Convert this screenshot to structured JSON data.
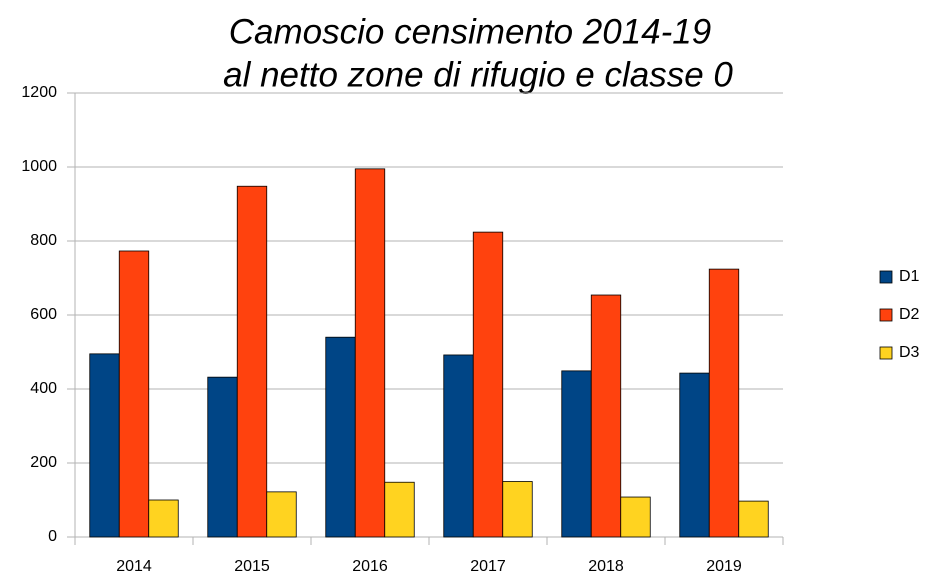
{
  "chart_data": {
    "type": "bar",
    "title": "Camoscio censimento 2014-19",
    "subtitle": "al netto zone di rifugio e classe 0",
    "categories": [
      "2014",
      "2015",
      "2016",
      "2017",
      "2018",
      "2019"
    ],
    "series": [
      {
        "name": "D1",
        "color": "#004586",
        "values": [
          495,
          432,
          540,
          492,
          449,
          443
        ]
      },
      {
        "name": "D2",
        "color": "#ff420e",
        "values": [
          773,
          948,
          995,
          824,
          654,
          724
        ]
      },
      {
        "name": "D3",
        "color": "#ffd320",
        "values": [
          100,
          122,
          148,
          150,
          108,
          97
        ]
      }
    ],
    "ylim": [
      0,
      1200
    ],
    "yticks": [
      0,
      200,
      400,
      600,
      800,
      1000,
      1200
    ],
    "grid": true,
    "legend": "right"
  }
}
